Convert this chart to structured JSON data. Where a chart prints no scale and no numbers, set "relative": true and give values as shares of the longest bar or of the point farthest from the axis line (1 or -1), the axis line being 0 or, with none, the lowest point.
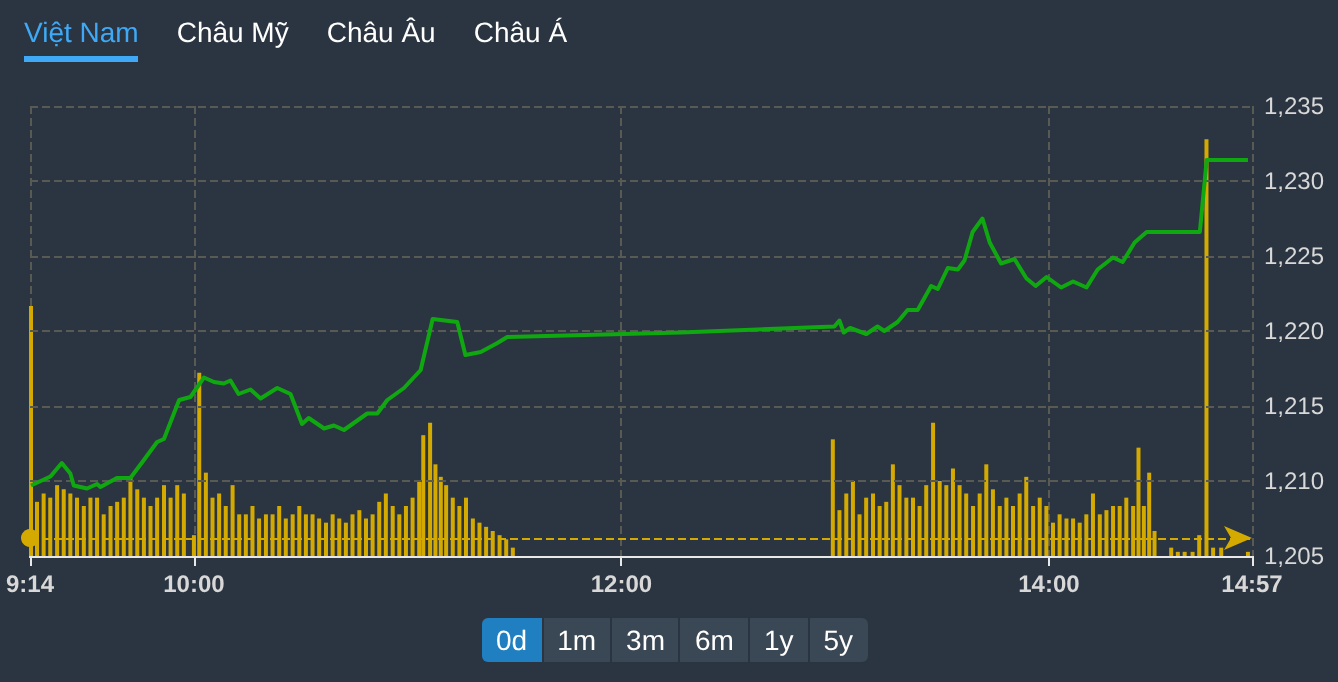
{
  "chart_data": [
    {
      "type": "line",
      "annotations": [
        "Việt Nam",
        "Châu Mỹ",
        "Châu Âu",
        "Châu Á",
        "0d",
        "1m",
        "3m",
        "6m",
        "1y",
        "5y"
      ],
      "x": [
        9.238,
        9.329,
        9.382,
        9.422,
        9.438,
        9.5,
        9.547,
        9.563,
        9.64,
        9.703,
        9.766,
        9.828,
        9.86,
        9.931,
        9.984,
        10.047,
        10.094,
        10.14,
        10.171,
        10.209,
        10.265,
        10.312,
        10.39,
        10.452,
        10.506,
        10.537,
        10.609,
        10.655,
        10.702,
        10.811,
        10.858,
        10.905,
        10.983,
        11.061,
        11.117,
        11.232,
        11.27,
        11.342,
        11.42,
        11.466,
        12.278,
        12.996,
        13.02,
        13.04,
        13.07,
        13.146,
        13.198,
        13.23,
        13.292,
        13.339,
        13.386,
        13.449,
        13.48,
        13.527,
        13.574,
        13.605,
        13.643,
        13.689,
        13.723,
        13.776,
        13.839,
        13.895,
        13.938,
        13.989,
        14.057,
        14.113,
        14.176,
        14.228,
        14.3,
        14.345,
        14.401,
        14.457,
        14.706,
        14.738,
        14.931
      ],
      "series": [
        {
          "color": "#10a810",
          "values": [
            1209.7,
            1210.3,
            1211.2,
            1210.5,
            1209.7,
            1209.5,
            1209.8,
            1209.6,
            1210.2,
            1210.2,
            1211.4,
            1212.6,
            1212.8,
            1215.4,
            1215.6,
            1216.9,
            1216.6,
            1216.5,
            1216.7,
            1215.8,
            1216.1,
            1215.5,
            1216.2,
            1215.8,
            1213.8,
            1214.2,
            1213.5,
            1213.7,
            1213.4,
            1214.5,
            1214.5,
            1215.4,
            1216.2,
            1217.4,
            1220.8,
            1220.6,
            1218.4,
            1218.6,
            1219.2,
            1219.6,
            1219.9,
            1220.3,
            1220.7,
            1219.9,
            1220.2,
            1219.8,
            1220.3,
            1220.0,
            1220.6,
            1221.4,
            1221.4,
            1223.0,
            1222.8,
            1224.2,
            1224.1,
            1224.7,
            1226.6,
            1227.5,
            1225.9,
            1224.5,
            1224.8,
            1223.5,
            1223.0,
            1223.6,
            1222.9,
            1223.3,
            1222.9,
            1224.1,
            1224.9,
            1224.6,
            1225.9,
            1226.6,
            1226.6,
            1231.4,
            1231.4
          ]
        }
      ],
      "xlim": [
        9.2333,
        14.95
      ],
      "ylim": [
        1205,
        1235
      ],
      "yticks": [
        {
          "value": 1205,
          "label": "1,205"
        },
        {
          "value": 1210,
          "label": "1,210"
        },
        {
          "value": 1215,
          "label": "1,215"
        },
        {
          "value": 1220,
          "label": "1,220"
        },
        {
          "value": 1225,
          "label": "1,225"
        },
        {
          "value": 1230,
          "label": "1,230"
        },
        {
          "value": 1235,
          "label": "1,235"
        }
      ],
      "ref_lines": [
        {
          "axis": "y",
          "value": 1206.2,
          "color": "#d4aa00",
          "line_style": "dashed"
        }
      ],
      "grid": "y",
      "tick_labels": "y",
      "marker": "none"
    },
    {
      "type": "bar",
      "relative": true,
      "grid": "x",
      "xlim": [
        9.2333,
        14.95
      ],
      "xticks": [
        {
          "value": 9.2333,
          "label": "9:14"
        },
        {
          "value": 10,
          "label": "10:00"
        },
        {
          "value": 12,
          "label": "12:00"
        },
        {
          "value": 14,
          "label": "14:00"
        },
        {
          "value": 14.95,
          "label": "14:57"
        }
      ],
      "x": [
        9.238,
        9.266,
        9.297,
        9.328,
        9.36,
        9.391,
        9.422,
        9.453,
        9.485,
        9.516,
        9.547,
        9.578,
        9.61,
        9.641,
        9.672,
        9.703,
        9.735,
        9.766,
        9.797,
        9.828,
        9.86,
        9.891,
        9.922,
        9.953,
        10.0,
        10.025,
        10.056,
        10.087,
        10.118,
        10.149,
        10.181,
        10.212,
        10.243,
        10.274,
        10.305,
        10.337,
        10.368,
        10.399,
        10.43,
        10.462,
        10.493,
        10.524,
        10.555,
        10.586,
        10.618,
        10.649,
        10.68,
        10.711,
        10.742,
        10.774,
        10.805,
        10.836,
        10.867,
        10.898,
        10.93,
        10.961,
        10.992,
        11.023,
        11.054,
        11.073,
        11.105,
        11.13,
        11.155,
        11.18,
        11.211,
        11.242,
        11.273,
        11.305,
        11.336,
        11.367,
        11.398,
        11.43,
        11.461,
        11.492,
        12.989,
        13.02,
        13.052,
        13.083,
        13.114,
        13.145,
        13.177,
        13.208,
        13.239,
        13.27,
        13.301,
        13.333,
        13.364,
        13.395,
        13.426,
        13.458,
        13.489,
        13.52,
        13.551,
        13.582,
        13.613,
        13.645,
        13.676,
        13.707,
        13.738,
        13.77,
        13.801,
        13.832,
        13.863,
        13.894,
        13.926,
        13.957,
        13.988,
        14.019,
        14.05,
        14.082,
        14.113,
        14.144,
        14.175,
        14.206,
        14.238,
        14.269,
        14.3,
        14.331,
        14.362,
        14.394,
        14.419,
        14.444,
        14.469,
        14.494,
        14.572,
        14.603,
        14.635,
        14.672,
        14.703,
        14.737,
        14.768,
        14.806,
        14.931
      ],
      "series": [
        {
          "color": "#d4aa00",
          "values": [
            0.6,
            0.13,
            0.15,
            0.14,
            0.17,
            0.16,
            0.15,
            0.14,
            0.12,
            0.14,
            0.14,
            0.1,
            0.12,
            0.13,
            0.14,
            0.19,
            0.16,
            0.14,
            0.12,
            0.14,
            0.17,
            0.14,
            0.17,
            0.15,
            0.05,
            0.44,
            0.2,
            0.14,
            0.15,
            0.12,
            0.17,
            0.1,
            0.1,
            0.12,
            0.09,
            0.1,
            0.1,
            0.12,
            0.09,
            0.1,
            0.12,
            0.1,
            0.1,
            0.09,
            0.08,
            0.1,
            0.09,
            0.08,
            0.1,
            0.11,
            0.09,
            0.1,
            0.13,
            0.15,
            0.12,
            0.1,
            0.12,
            0.14,
            0.18,
            0.29,
            0.32,
            0.22,
            0.19,
            0.17,
            0.14,
            0.12,
            0.14,
            0.09,
            0.08,
            0.07,
            0.06,
            0.05,
            0.04,
            0.02,
            0.28,
            0.11,
            0.15,
            0.18,
            0.1,
            0.14,
            0.15,
            0.12,
            0.13,
            0.22,
            0.17,
            0.14,
            0.14,
            0.12,
            0.17,
            0.32,
            0.18,
            0.17,
            0.21,
            0.17,
            0.15,
            0.12,
            0.15,
            0.22,
            0.16,
            0.12,
            0.14,
            0.12,
            0.15,
            0.19,
            0.12,
            0.14,
            0.12,
            0.08,
            0.1,
            0.09,
            0.09,
            0.08,
            0.1,
            0.15,
            0.1,
            0.11,
            0.12,
            0.12,
            0.14,
            0.12,
            0.26,
            0.12,
            0.2,
            0.06,
            0.02,
            0.01,
            0.01,
            0.01,
            0.05,
            1.0,
            0.02,
            0.02,
            0.01
          ]
        }
      ]
    }
  ]
}
